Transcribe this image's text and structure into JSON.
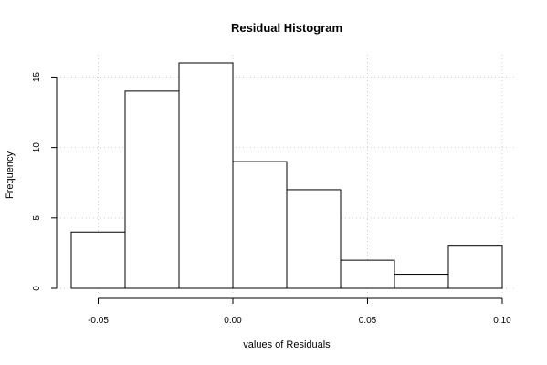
{
  "chart_data": {
    "type": "bar",
    "title": "Residual Histogram",
    "xlabel": "values of Residuals",
    "ylabel": "Frequency",
    "bins": [
      {
        "start": -0.06,
        "end": -0.04,
        "count": 4
      },
      {
        "start": -0.04,
        "end": -0.02,
        "count": 14
      },
      {
        "start": -0.02,
        "end": 0.0,
        "count": 16
      },
      {
        "start": 0.0,
        "end": 0.02,
        "count": 9
      },
      {
        "start": 0.02,
        "end": 0.04,
        "count": 7
      },
      {
        "start": 0.04,
        "end": 0.06,
        "count": 2
      },
      {
        "start": 0.06,
        "end": 0.08,
        "count": 1
      },
      {
        "start": 0.08,
        "end": 0.1,
        "count": 3
      }
    ],
    "xlim": [
      -0.06,
      0.1
    ],
    "ylim": [
      0,
      16
    ],
    "x_ticks": [
      -0.05,
      0.0,
      0.05,
      0.1
    ],
    "x_tick_labels": [
      "-0.05",
      "0.00",
      "0.05",
      "0.10"
    ],
    "y_ticks": [
      0,
      5,
      10,
      15
    ],
    "y_tick_labels": [
      "0",
      "5",
      "10",
      "15"
    ],
    "grid": true
  }
}
